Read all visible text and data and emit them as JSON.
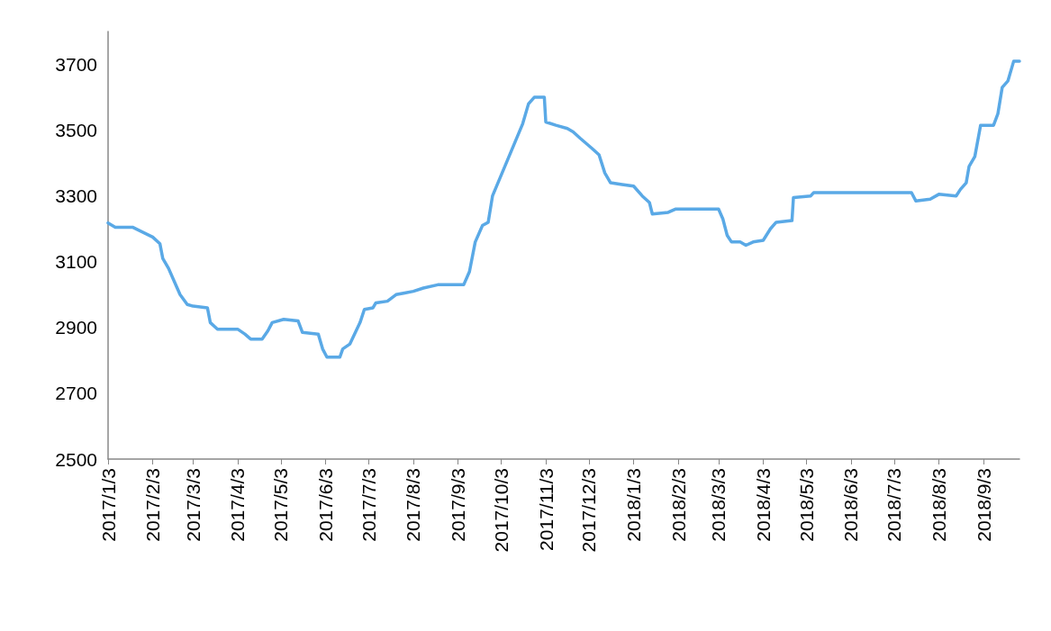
{
  "chart_data": {
    "type": "line",
    "line_style": "solid",
    "marker": "none",
    "grid": false,
    "xlim": [
      "2017-01-03",
      "2018-09-28"
    ],
    "ylim": [
      2500,
      3800
    ],
    "yticks": [
      2500,
      2700,
      2900,
      3100,
      3300,
      3500,
      3700
    ],
    "xticks": [
      {
        "value": "2017-01-03",
        "label": "2017/1/3"
      },
      {
        "value": "2017-02-03",
        "label": "2017/2/3"
      },
      {
        "value": "2017-03-03",
        "label": "2017/3/3"
      },
      {
        "value": "2017-04-03",
        "label": "2017/4/3"
      },
      {
        "value": "2017-05-03",
        "label": "2017/5/3"
      },
      {
        "value": "2017-06-03",
        "label": "2017/6/3"
      },
      {
        "value": "2017-07-03",
        "label": "2017/7/3"
      },
      {
        "value": "2017-08-03",
        "label": "2017/8/3"
      },
      {
        "value": "2017-09-03",
        "label": "2017/9/3"
      },
      {
        "value": "2017-10-03",
        "label": "2017/10/3"
      },
      {
        "value": "2017-11-03",
        "label": "2017/11/3"
      },
      {
        "value": "2017-12-03",
        "label": "2017/12/3"
      },
      {
        "value": "2018-01-03",
        "label": "2018/1/3"
      },
      {
        "value": "2018-02-03",
        "label": "2018/2/3"
      },
      {
        "value": "2018-03-03",
        "label": "2018/3/3"
      },
      {
        "value": "2018-04-03",
        "label": "2018/4/3"
      },
      {
        "value": "2018-05-03",
        "label": "2018/5/3"
      },
      {
        "value": "2018-06-03",
        "label": "2018/6/3"
      },
      {
        "value": "2018-07-03",
        "label": "2018/7/3"
      },
      {
        "value": "2018-08-03",
        "label": "2018/8/3"
      },
      {
        "value": "2018-09-03",
        "label": "2018/9/3"
      }
    ],
    "series": [
      {
        "color": "#5aa9e6",
        "x": [
          "2017-01-03",
          "2017-01-08",
          "2017-01-20",
          "2017-02-03",
          "2017-02-08",
          "2017-02-10",
          "2017-02-14",
          "2017-02-18",
          "2017-02-22",
          "2017-02-27",
          "2017-03-03",
          "2017-03-13",
          "2017-03-15",
          "2017-03-20",
          "2017-04-03",
          "2017-04-08",
          "2017-04-12",
          "2017-04-20",
          "2017-04-24",
          "2017-04-27",
          "2017-05-05",
          "2017-05-15",
          "2017-05-18",
          "2017-05-29",
          "2017-06-01",
          "2017-06-04",
          "2017-06-13",
          "2017-06-15",
          "2017-06-20",
          "2017-06-27",
          "2017-06-30",
          "2017-07-06",
          "2017-07-08",
          "2017-07-16",
          "2017-07-22",
          "2017-07-28",
          "2017-08-03",
          "2017-08-10",
          "2017-08-20",
          "2017-09-07",
          "2017-09-11",
          "2017-09-15",
          "2017-09-20",
          "2017-09-24",
          "2017-09-27",
          "2017-10-18",
          "2017-10-22",
          "2017-10-26",
          "2017-11-02",
          "2017-11-03",
          "2017-11-10",
          "2017-11-18",
          "2017-11-22",
          "2017-11-27",
          "2017-12-05",
          "2017-12-10",
          "2017-12-14",
          "2017-12-18",
          "2017-12-26",
          "2018-01-03",
          "2018-01-09",
          "2018-01-14",
          "2018-01-16",
          "2018-01-27",
          "2018-02-01",
          "2018-03-03",
          "2018-03-06",
          "2018-03-09",
          "2018-03-12",
          "2018-03-18",
          "2018-03-22",
          "2018-03-27",
          "2018-04-03",
          "2018-04-08",
          "2018-04-12",
          "2018-04-23",
          "2018-04-24",
          "2018-05-06",
          "2018-05-08",
          "2018-07-15",
          "2018-07-18",
          "2018-07-28",
          "2018-08-03",
          "2018-08-15",
          "2018-08-18",
          "2018-08-22",
          "2018-08-24",
          "2018-08-28",
          "2018-09-01",
          "2018-09-10",
          "2018-09-13",
          "2018-09-16",
          "2018-09-20",
          "2018-09-24",
          "2018-09-28"
        ],
        "values": [
          3218,
          3205,
          3205,
          3175,
          3155,
          3110,
          3080,
          3040,
          3000,
          2970,
          2965,
          2960,
          2915,
          2895,
          2895,
          2880,
          2865,
          2865,
          2890,
          2915,
          2925,
          2920,
          2885,
          2880,
          2835,
          2810,
          2810,
          2835,
          2850,
          2915,
          2955,
          2960,
          2975,
          2980,
          3000,
          3005,
          3010,
          3020,
          3030,
          3030,
          3070,
          3160,
          3210,
          3220,
          3300,
          3520,
          3580,
          3600,
          3600,
          3525,
          3515,
          3505,
          3495,
          3475,
          3445,
          3425,
          3370,
          3340,
          3335,
          3330,
          3300,
          3280,
          3245,
          3250,
          3260,
          3260,
          3230,
          3180,
          3160,
          3160,
          3150,
          3160,
          3165,
          3200,
          3220,
          3225,
          3295,
          3300,
          3310,
          3310,
          3285,
          3290,
          3305,
          3300,
          3320,
          3340,
          3390,
          3420,
          3515,
          3515,
          3550,
          3630,
          3650,
          3710,
          3710
        ]
      }
    ]
  }
}
